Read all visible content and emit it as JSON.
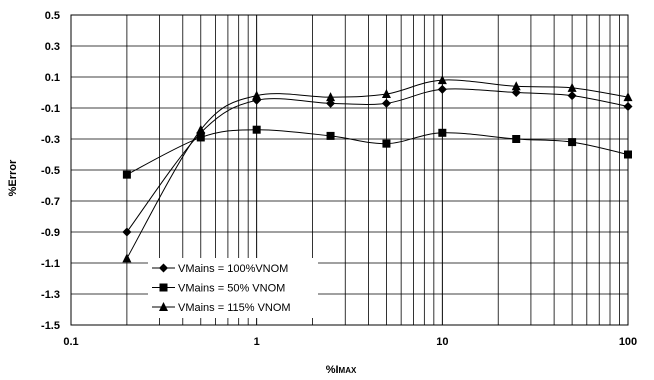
{
  "chart_data": {
    "type": "line",
    "xscale": "log",
    "xlim": [
      0.1,
      100
    ],
    "ylim": [
      -1.5,
      0.5
    ],
    "xticks": [
      "0.1",
      "1",
      "10",
      "100"
    ],
    "yticks": [
      "0.5",
      "0.3",
      "0.1",
      "-0.1",
      "-0.3",
      "-0.5",
      "-0.7",
      "-0.9",
      "-1.1",
      "-1.3",
      "-1.5"
    ],
    "xlabel": "%I",
    "xlabel_sub": "MAX",
    "ylabel": "%Error",
    "grid": true,
    "legend_position": "lower-middle",
    "x": [
      0.2,
      0.5,
      1,
      2.5,
      5,
      10,
      25,
      50,
      100
    ],
    "series": [
      {
        "name": "VMains = 100%VNOM",
        "marker": "diamond",
        "color": "#000000",
        "values": [
          -0.9,
          -0.26,
          -0.05,
          -0.07,
          -0.07,
          0.02,
          0.0,
          -0.02,
          -0.09
        ]
      },
      {
        "name": "VMains = 50% VNOM",
        "marker": "square",
        "color": "#000000",
        "values": [
          -0.53,
          -0.29,
          -0.24,
          -0.28,
          -0.33,
          -0.26,
          -0.3,
          -0.32,
          -0.4
        ]
      },
      {
        "name": "VMains = 115% VNOM",
        "marker": "triangle",
        "color": "#000000",
        "values": [
          -1.07,
          -0.24,
          -0.02,
          -0.03,
          -0.01,
          0.08,
          0.04,
          0.03,
          -0.03
        ]
      }
    ]
  }
}
